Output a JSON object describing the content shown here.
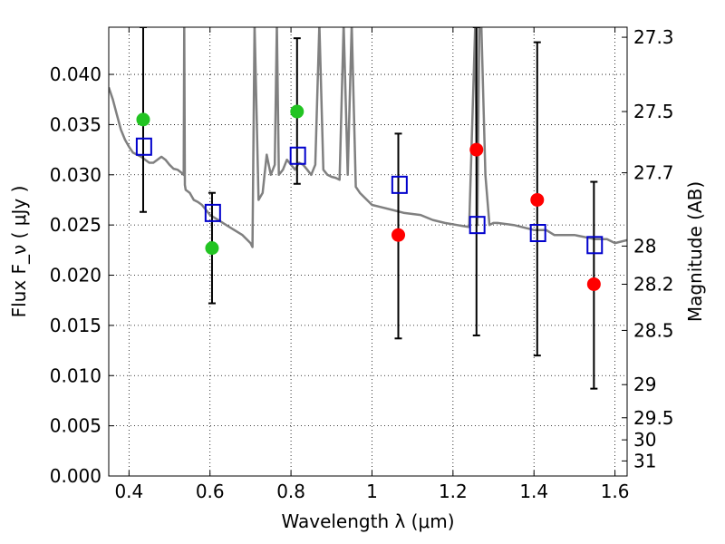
{
  "chart_data": {
    "type": "scatter",
    "title": "",
    "xlabel": "Wavelength  λ (μm)",
    "ylabel": "Flux  F_ν  ( μJy )",
    "ylabel_right": "Magnitude (AB)",
    "xlim": [
      0.35,
      1.63
    ],
    "ylim": [
      0.0,
      0.0447
    ],
    "grid": true,
    "x_ticks": [
      0.4,
      0.6,
      0.8,
      1.0,
      1.2,
      1.4,
      1.6
    ],
    "x_tick_labels": [
      "0.4",
      "0.6",
      "0.8",
      "1",
      "1.2",
      "1.4",
      "1.6"
    ],
    "y_ticks": [
      0.0,
      0.005,
      0.01,
      0.015,
      0.02,
      0.025,
      0.03,
      0.035,
      0.04
    ],
    "y_tick_labels": [
      "0.000",
      "0.005",
      "0.010",
      "0.015",
      "0.020",
      "0.025",
      "0.030",
      "0.035",
      "0.040"
    ],
    "right_axis": {
      "ticks": [
        {
          "label": "27.3",
          "flux": 0.0437
        },
        {
          "label": "27.5",
          "flux": 0.0363
        },
        {
          "label": "27.7",
          "flux": 0.0302
        },
        {
          "label": "28",
          "flux": 0.0229
        },
        {
          "label": "28.2",
          "flux": 0.0191
        },
        {
          "label": "28.5",
          "flux": 0.0145
        },
        {
          "label": "29",
          "flux": 0.0091
        },
        {
          "label": "29.5",
          "flux": 0.0058
        },
        {
          "label": "30",
          "flux": 0.0036
        },
        {
          "label": "31",
          "flux": 0.0015
        }
      ]
    },
    "series": [
      {
        "kind": "line",
        "color": "#808080",
        "x": [
          0.35,
          0.36,
          0.37,
          0.38,
          0.39,
          0.4,
          0.41,
          0.42,
          0.43,
          0.44,
          0.45,
          0.46,
          0.47,
          0.48,
          0.49,
          0.5,
          0.51,
          0.52,
          0.53,
          0.535,
          0.5365,
          0.538,
          0.54,
          0.55,
          0.56,
          0.57,
          0.58,
          0.59,
          0.6,
          0.62,
          0.64,
          0.66,
          0.68,
          0.7,
          0.705,
          0.71,
          0.72,
          0.73,
          0.74,
          0.75,
          0.76,
          0.765,
          0.77,
          0.78,
          0.79,
          0.8,
          0.81,
          0.82,
          0.83,
          0.84,
          0.85,
          0.86,
          0.87,
          0.88,
          0.89,
          0.9,
          0.91,
          0.92,
          0.93,
          0.94,
          0.95,
          0.96,
          0.97,
          0.98,
          1.0,
          1.02,
          1.05,
          1.08,
          1.12,
          1.15,
          1.18,
          1.21,
          1.24,
          1.255,
          1.26,
          1.265,
          1.27,
          1.28,
          1.29,
          1.3,
          1.31,
          1.35,
          1.4,
          1.43,
          1.45,
          1.5,
          1.55,
          1.58,
          1.6,
          1.63
        ],
        "y": [
          0.0387,
          0.0375,
          0.036,
          0.0345,
          0.0335,
          0.0328,
          0.0322,
          0.032,
          0.0318,
          0.0315,
          0.0312,
          0.0312,
          0.0315,
          0.0318,
          0.0315,
          0.031,
          0.0306,
          0.0305,
          0.0302,
          0.03,
          0.045,
          0.029,
          0.0285,
          0.0282,
          0.0275,
          0.0273,
          0.027,
          0.0265,
          0.026,
          0.0255,
          0.025,
          0.0245,
          0.024,
          0.0232,
          0.0228,
          0.045,
          0.0275,
          0.0282,
          0.032,
          0.03,
          0.031,
          0.045,
          0.03,
          0.0305,
          0.0315,
          0.031,
          0.0305,
          0.0312,
          0.031,
          0.0305,
          0.03,
          0.031,
          0.045,
          0.0305,
          0.03,
          0.0298,
          0.0297,
          0.0295,
          0.045,
          0.03,
          0.045,
          0.0288,
          0.0282,
          0.0278,
          0.027,
          0.0268,
          0.0265,
          0.0262,
          0.026,
          0.0255,
          0.0252,
          0.025,
          0.0248,
          0.045,
          0.025,
          0.045,
          0.045,
          0.03,
          0.025,
          0.0252,
          0.0252,
          0.025,
          0.0245,
          0.0245,
          0.024,
          0.024,
          0.0236,
          0.0236,
          0.0232,
          0.0235
        ]
      },
      {
        "kind": "errorbar",
        "name": "data",
        "color": "#000000",
        "points": [
          {
            "x": 0.435,
            "y": 0.0355,
            "color": "#22c422",
            "ylo": 0.0263,
            "yhi": 0.0447
          },
          {
            "x": 0.605,
            "y": 0.0227,
            "color": "#22c422",
            "ylo": 0.0172,
            "yhi": 0.0282
          },
          {
            "x": 0.815,
            "y": 0.0363,
            "color": "#22c422",
            "ylo": 0.0291,
            "yhi": 0.0436
          },
          {
            "x": 1.065,
            "y": 0.024,
            "color": "#ff0000",
            "ylo": 0.0137,
            "yhi": 0.0341
          },
          {
            "x": 1.258,
            "y": 0.0325,
            "color": "#ff0000",
            "ylo": 0.014,
            "yhi": 0.0447
          },
          {
            "x": 1.408,
            "y": 0.0275,
            "color": "#ff0000",
            "ylo": 0.012,
            "yhi": 0.0432
          },
          {
            "x": 1.548,
            "y": 0.0191,
            "color": "#ff0000",
            "ylo": 0.0087,
            "yhi": 0.0293
          }
        ]
      },
      {
        "kind": "square",
        "color": "#0000cc",
        "x": [
          0.437,
          0.607,
          0.817,
          1.068,
          1.26,
          1.41,
          1.55
        ],
        "y": [
          0.0328,
          0.0262,
          0.0319,
          0.029,
          0.025,
          0.0242,
          0.023
        ]
      }
    ]
  }
}
